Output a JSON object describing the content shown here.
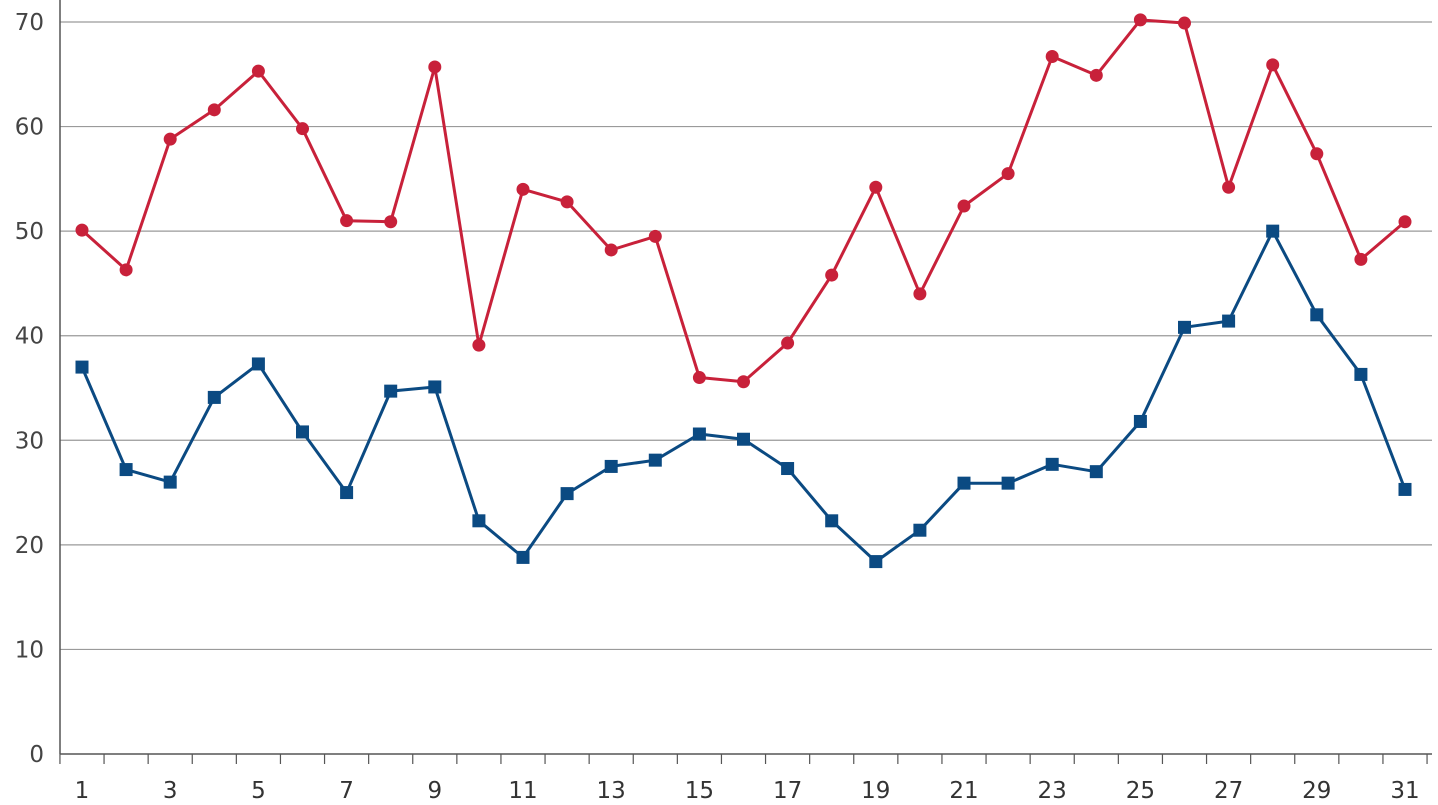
{
  "chart_data": {
    "type": "line",
    "x": [
      1,
      2,
      3,
      4,
      5,
      6,
      7,
      8,
      9,
      10,
      11,
      12,
      13,
      14,
      15,
      16,
      17,
      18,
      19,
      20,
      21,
      22,
      23,
      24,
      25,
      26,
      27,
      28,
      29,
      30,
      31
    ],
    "x_tick_labels": [
      "1",
      "3",
      "5",
      "7",
      "9",
      "11",
      "13",
      "15",
      "17",
      "19",
      "21",
      "23",
      "25",
      "27",
      "29",
      "31"
    ],
    "y_tick_labels": [
      "0",
      "10",
      "20",
      "30",
      "40",
      "50",
      "60",
      "70"
    ],
    "ylim": [
      0,
      70
    ],
    "grid": "horizontal",
    "series": [
      {
        "color": "#c8213a",
        "marker": "circle",
        "values": [
          50.1,
          46.3,
          58.8,
          61.6,
          65.3,
          59.8,
          51.0,
          50.9,
          65.7,
          39.1,
          54.0,
          52.8,
          48.2,
          49.5,
          36.0,
          35.6,
          39.3,
          45.8,
          54.2,
          44.0,
          52.4,
          55.5,
          66.7,
          64.9,
          70.2,
          69.9,
          54.2,
          65.9,
          57.4,
          47.3,
          50.9
        ]
      },
      {
        "color": "#0b4a82",
        "marker": "square",
        "values": [
          37.0,
          27.2,
          26.0,
          34.1,
          37.3,
          30.8,
          25.0,
          34.7,
          35.1,
          22.3,
          18.8,
          24.9,
          27.5,
          28.1,
          30.6,
          30.1,
          27.3,
          22.3,
          18.4,
          21.4,
          25.9,
          25.9,
          27.7,
          27.0,
          31.8,
          40.8,
          41.4,
          50.0,
          42.0,
          36.3,
          25.3
        ]
      }
    ]
  }
}
